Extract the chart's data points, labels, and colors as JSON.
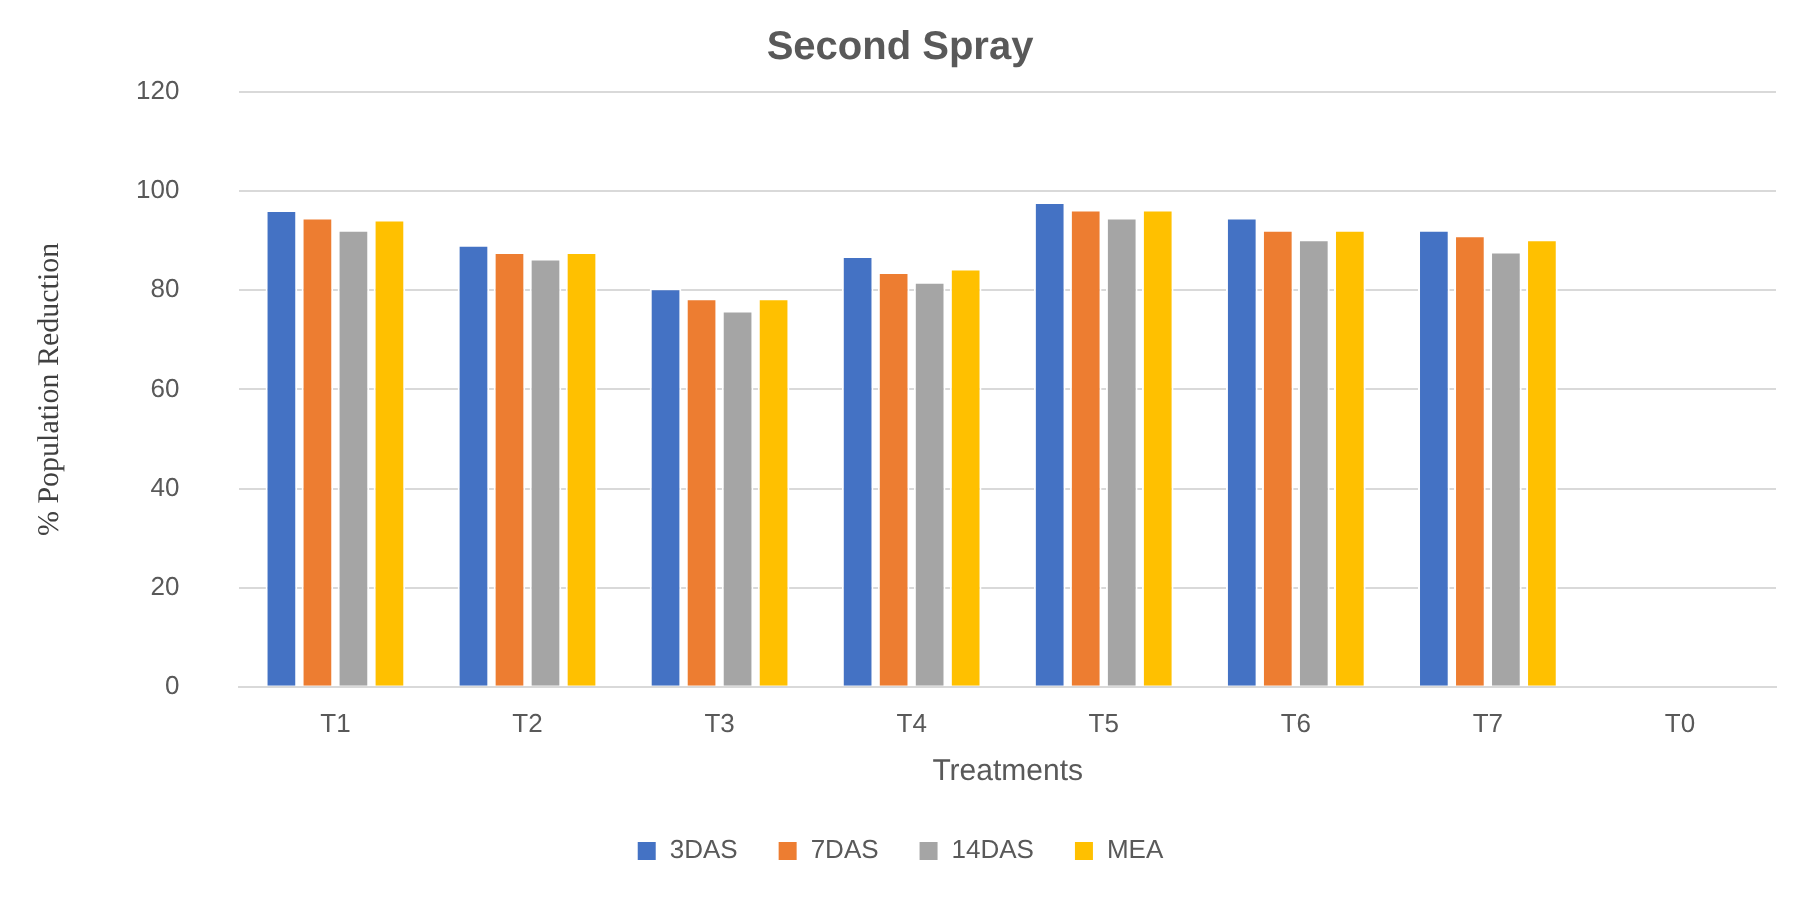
{
  "chart_data": {
    "type": "bar",
    "title": "Second Spray",
    "xlabel": "Treatments",
    "ylabel": "% Population Reduction",
    "categories": [
      "T1",
      "T2",
      "T3",
      "T4",
      "T5",
      "T6",
      "T7",
      "T0"
    ],
    "series": [
      {
        "name": "3DAS",
        "color": "#4472c4",
        "values": [
          96.2,
          89.2,
          80.4,
          86.9,
          97.8,
          94.7,
          92.2,
          0
        ]
      },
      {
        "name": "7DAS",
        "color": "#ed7d31",
        "values": [
          94.7,
          87.7,
          78.4,
          83.7,
          96.3,
          92.2,
          91.1,
          0
        ]
      },
      {
        "name": "14DAS",
        "color": "#a5a5a5",
        "values": [
          92.2,
          86.4,
          75.9,
          81.7,
          94.7,
          90.3,
          87.8,
          0
        ]
      },
      {
        "name": "MEA",
        "color": "#ffc000",
        "values": [
          94.3,
          87.7,
          78.4,
          84.4,
          96.3,
          92.2,
          90.3,
          0
        ]
      }
    ],
    "ylim": [
      0,
      120
    ],
    "yticks": [
      0,
      20,
      40,
      60,
      80,
      100,
      120
    ],
    "grid": "y",
    "legend": "bottom"
  }
}
